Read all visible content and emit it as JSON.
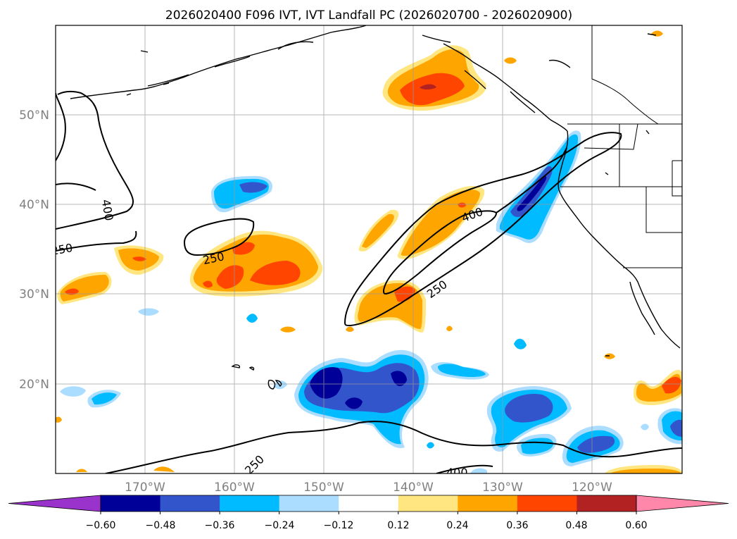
{
  "title": "2026020400 F096 IVT, IVT Landfall PC (2026020700 - 2026020900)",
  "map": {
    "lat_labels": [
      "50°N",
      "40°N",
      "30°N",
      "20°N"
    ],
    "lon_labels": [
      "170°W",
      "160°W",
      "150°W",
      "140°W",
      "130°W",
      "120°W"
    ],
    "contour_labels": [
      "400",
      "250",
      "400",
      "250",
      "250",
      "400"
    ]
  },
  "colorbar": {
    "ticks": [
      "−0.60",
      "−0.48",
      "−0.36",
      "−0.24",
      "−0.12",
      "0.12",
      "0.24",
      "0.36",
      "0.48",
      "0.60"
    ],
    "colors": [
      "#9933cc",
      "#000099",
      "#3355cc",
      "#00bbff",
      "#aaddff",
      "#ffffff",
      "#ffe680",
      "#ffa500",
      "#ff4500",
      "#b22222",
      "#ff88aa"
    ]
  }
}
